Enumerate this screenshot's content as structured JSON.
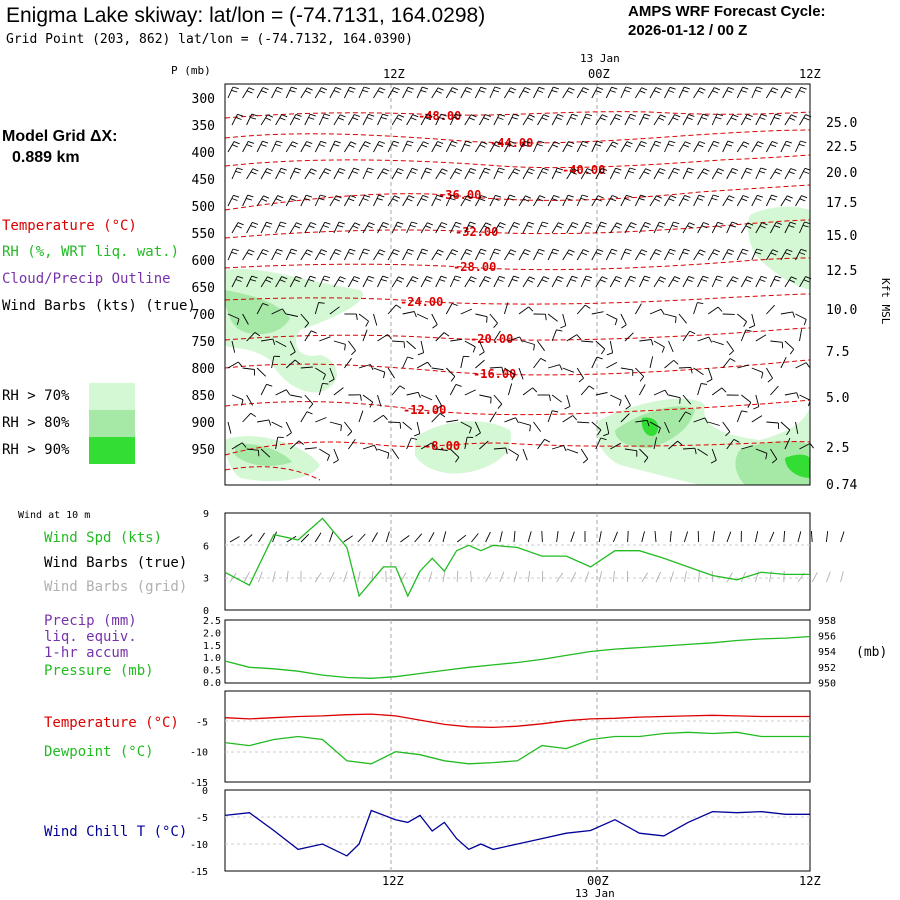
{
  "header": {
    "title": "Enigma Lake skiway:  lat/lon = (-74.7131, 164.0298)",
    "subtitle": "Grid Point (203, 862) lat/lon = (-74.7132, 164.0390)",
    "cycle_title": "AMPS WRF Forecast Cycle:",
    "cycle_value": "2026-01-12 / 00  Z",
    "model_grid_label": "Model Grid ΔX:",
    "model_grid_value": "0.889 km"
  },
  "colors": {
    "temperature": "#dd0000",
    "rh": "#22bb22",
    "cloud": "#7733aa",
    "wind_barbs": "#000000",
    "wind_barbs_grid": "#b0b0b0",
    "wind_chill": "#000099"
  },
  "legend": {
    "temperature": "Temperature (°C)",
    "rh": "RH (%, WRT liq. wat.)",
    "cloud": "Cloud/Precip Outline",
    "wind_barbs": "Wind Barbs (kts) (true)",
    "rh_levels": [
      {
        "label": "RH > 70%",
        "color": "#d4f7d4"
      },
      {
        "label": "RH > 80%",
        "color": "#a6e8a6"
      },
      {
        "label": "RH > 90%",
        "color": "#33dd33"
      }
    ]
  },
  "time_axis": {
    "top_labels": [
      "12Z",
      "00Z",
      "12Z"
    ],
    "date_label": "13 Jan",
    "bottom_labels": [
      "12Z",
      "00Z",
      "12Z"
    ]
  },
  "chart_data": [
    {
      "type": "line",
      "name": "upper-air-cross-section",
      "ylabel": "P (mb)",
      "y_ticks": [
        "300",
        "350",
        "400",
        "450",
        "500",
        "550",
        "600",
        "650",
        "700",
        "750",
        "800",
        "850",
        "900",
        "950"
      ],
      "right_axis_label": "Kft MSL",
      "right_ticks": [
        "25.0",
        "22.5",
        "20.0",
        "17.5",
        "15.0",
        "12.5",
        "10.0",
        "7.5",
        "5.0",
        "2.5",
        "0.74"
      ],
      "isotherm_labels": [
        "-48.00",
        "-44.00",
        "-40.00",
        "-36.00",
        "-32.00",
        "-28.00",
        "-24.00",
        "-20.00",
        "-16.00",
        "-12.00",
        "-8.00"
      ],
      "x_range_hours": [
        0,
        48
      ]
    },
    {
      "type": "line",
      "name": "wind-10m",
      "panel_title": "Wind at 10 m",
      "labels": [
        "Wind Spd (kts)",
        "Wind Barbs (true)",
        "Wind Barbs (grid)"
      ],
      "y_ticks": [
        "9",
        "6",
        "3",
        "0"
      ],
      "ylim": [
        0,
        9
      ],
      "x": [
        0,
        2,
        4,
        6,
        8,
        10,
        11,
        13,
        14,
        15,
        16,
        17,
        18,
        19,
        20,
        21,
        22,
        24,
        26,
        28,
        30,
        32,
        34,
        36,
        38,
        40,
        42,
        44,
        46,
        48
      ],
      "values": [
        3.5,
        2.3,
        7.0,
        6.5,
        8.5,
        5.8,
        1.3,
        4.0,
        4.0,
        1.3,
        3.6,
        4.8,
        3.6,
        5.5,
        6.0,
        5.5,
        6.0,
        5.8,
        5.0,
        5.0,
        4.0,
        5.5,
        5.5,
        4.8,
        4.0,
        3.2,
        2.8,
        3.5,
        3.3,
        3.3
      ]
    },
    {
      "type": "line",
      "name": "precip-pressure",
      "labels": [
        "Precip (mm)",
        "liq. equiv.",
        "1-hr accum",
        "Pressure (mb)"
      ],
      "y_ticks_left": [
        "2.5",
        "2.0",
        "1.5",
        "1.0",
        "0.5",
        "0.0"
      ],
      "y_ticks_right": [
        "958",
        "956",
        "954",
        "952",
        "950"
      ],
      "right_axis_label": "(mb)",
      "ylim": [
        950,
        958
      ],
      "x": [
        0,
        2,
        4,
        6,
        8,
        10,
        12,
        14,
        16,
        18,
        20,
        22,
        24,
        26,
        28,
        30,
        32,
        34,
        36,
        38,
        40,
        42,
        44,
        46,
        48
      ],
      "values": [
        952.8,
        952.0,
        951.8,
        951.5,
        951.0,
        950.7,
        950.6,
        950.8,
        951.2,
        951.6,
        952.0,
        952.3,
        952.6,
        953.0,
        953.5,
        954.0,
        954.3,
        954.5,
        954.7,
        954.9,
        955.1,
        955.4,
        955.6,
        955.7,
        955.9
      ]
    },
    {
      "type": "line",
      "name": "temperature-dewpoint",
      "labels": [
        "Temperature (°C)",
        "Dewpoint (°C)"
      ],
      "y_ticks": [
        "-5",
        "-10",
        "-15"
      ],
      "ylim": [
        -15,
        0
      ],
      "series": [
        {
          "name": "Temperature",
          "color": "#dd0000",
          "x": [
            0,
            2,
            4,
            6,
            8,
            10,
            12,
            14,
            16,
            18,
            20,
            22,
            24,
            26,
            28,
            30,
            32,
            34,
            36,
            38,
            40,
            42,
            44,
            46,
            48
          ],
          "values": [
            -4.4,
            -4.6,
            -4.4,
            -4.2,
            -4.1,
            -3.9,
            -3.8,
            -4.1,
            -4.8,
            -5.5,
            -5.9,
            -6.0,
            -5.8,
            -5.4,
            -4.9,
            -4.6,
            -4.5,
            -4.3,
            -4.2,
            -4.1,
            -4.0,
            -4.1,
            -4.2,
            -4.2,
            -4.2
          ]
        },
        {
          "name": "Dewpoint",
          "color": "#22bb22",
          "x": [
            0,
            2,
            4,
            6,
            8,
            10,
            12,
            14,
            16,
            18,
            20,
            22,
            24,
            26,
            28,
            30,
            32,
            34,
            36,
            38,
            40,
            42,
            44,
            46,
            48
          ],
          "values": [
            -8.5,
            -9.0,
            -8.0,
            -7.5,
            -8.0,
            -11.5,
            -12.0,
            -10.0,
            -10.5,
            -11.5,
            -12.0,
            -11.8,
            -11.5,
            -9.0,
            -9.5,
            -8.0,
            -7.5,
            -7.5,
            -7.0,
            -6.8,
            -7.0,
            -6.8,
            -7.5,
            -7.5,
            -7.5
          ]
        }
      ]
    },
    {
      "type": "line",
      "name": "wind-chill",
      "labels": [
        "Wind Chill T (°C)"
      ],
      "y_ticks": [
        "0",
        "-5",
        "-10",
        "-15"
      ],
      "ylim": [
        -15,
        0
      ],
      "x": [
        0,
        2,
        4,
        6,
        8,
        10,
        11,
        12,
        14,
        15,
        16,
        17,
        18,
        19,
        20,
        21,
        22,
        24,
        26,
        28,
        30,
        32,
        34,
        36,
        38,
        40,
        42,
        44,
        46,
        48
      ],
      "values": [
        -4.7,
        -4.2,
        -7.5,
        -11.0,
        -10.0,
        -12.2,
        -10.0,
        -3.8,
        -5.5,
        -6.0,
        -4.7,
        -7.6,
        -6.0,
        -9.0,
        -11.0,
        -10.0,
        -11.0,
        -10.0,
        -9.0,
        -8.0,
        -7.5,
        -5.5,
        -8.0,
        -8.5,
        -6.0,
        -4.0,
        -4.2,
        -4.0,
        -4.5,
        -4.5
      ]
    }
  ]
}
